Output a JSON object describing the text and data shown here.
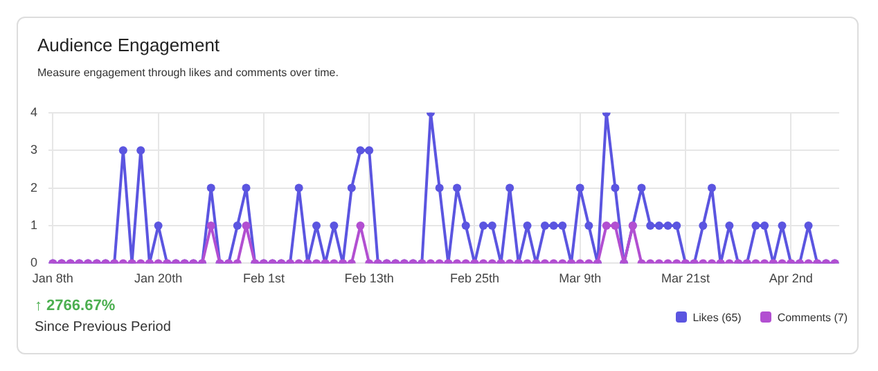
{
  "chart_data": {
    "type": "line",
    "title": "Audience Engagement",
    "subtitle": "Measure engagement through likes and comments over time.",
    "categories": [
      "Jan 8th",
      null,
      null,
      null,
      null,
      null,
      null,
      null,
      null,
      null,
      null,
      null,
      "Jan 20th",
      null,
      null,
      null,
      null,
      null,
      null,
      null,
      null,
      null,
      null,
      null,
      "Feb 1st",
      null,
      null,
      null,
      null,
      null,
      null,
      null,
      null,
      null,
      null,
      null,
      "Feb 13th",
      null,
      null,
      null,
      null,
      null,
      null,
      null,
      null,
      null,
      null,
      null,
      "Feb 25th",
      null,
      null,
      null,
      null,
      null,
      null,
      null,
      null,
      null,
      null,
      null,
      "Mar 9th",
      null,
      null,
      null,
      null,
      null,
      null,
      null,
      null,
      null,
      null,
      null,
      "Mar 21st",
      null,
      null,
      null,
      null,
      null,
      null,
      null,
      null,
      null,
      null,
      null,
      "Apr 2nd",
      null,
      null,
      null,
      null,
      null
    ],
    "series": [
      {
        "name": "Likes (65)",
        "color": "#5b55e0",
        "values": [
          0,
          0,
          0,
          0,
          0,
          0,
          0,
          0,
          3,
          0,
          3,
          0,
          1,
          0,
          0,
          0,
          0,
          0,
          2,
          0,
          0,
          1,
          2,
          0,
          0,
          0,
          0,
          0,
          2,
          0,
          1,
          0,
          1,
          0,
          2,
          3,
          3,
          0,
          0,
          0,
          0,
          0,
          0,
          4,
          2,
          0,
          2,
          1,
          0,
          1,
          1,
          0,
          2,
          0,
          1,
          0,
          1,
          1,
          1,
          0,
          2,
          1,
          0,
          4,
          2,
          0,
          1,
          2,
          1,
          1,
          1,
          1,
          0,
          0,
          1,
          2,
          0,
          1,
          0,
          0,
          1,
          1,
          0,
          1,
          0,
          0,
          1,
          0,
          0,
          0
        ]
      },
      {
        "name": "Comments (7)",
        "color": "#b24fd1",
        "values": [
          0,
          0,
          0,
          0,
          0,
          0,
          0,
          0,
          0,
          0,
          0,
          0,
          0,
          0,
          0,
          0,
          0,
          0,
          1,
          0,
          0,
          0,
          1,
          0,
          0,
          0,
          0,
          0,
          0,
          0,
          0,
          0,
          0,
          0,
          0,
          1,
          0,
          0,
          0,
          0,
          0,
          0,
          0,
          0,
          0,
          0,
          0,
          0,
          0,
          0,
          0,
          0,
          0,
          0,
          0,
          0,
          0,
          0,
          0,
          0,
          0,
          0,
          0,
          1,
          1,
          0,
          1,
          0,
          0,
          0,
          0,
          0,
          0,
          0,
          0,
          0,
          0,
          0,
          0,
          0,
          0,
          0,
          0,
          0,
          0,
          0,
          0,
          0,
          0,
          0
        ]
      }
    ],
    "ylim": [
      0,
      4
    ],
    "yticks": [
      0,
      1,
      2,
      3,
      4
    ],
    "grid": true,
    "legend": "bottom right",
    "marker": "circle",
    "line_style": "solid",
    "annotations": [
      "↑ 2766.67%",
      "Since Previous Period"
    ]
  }
}
